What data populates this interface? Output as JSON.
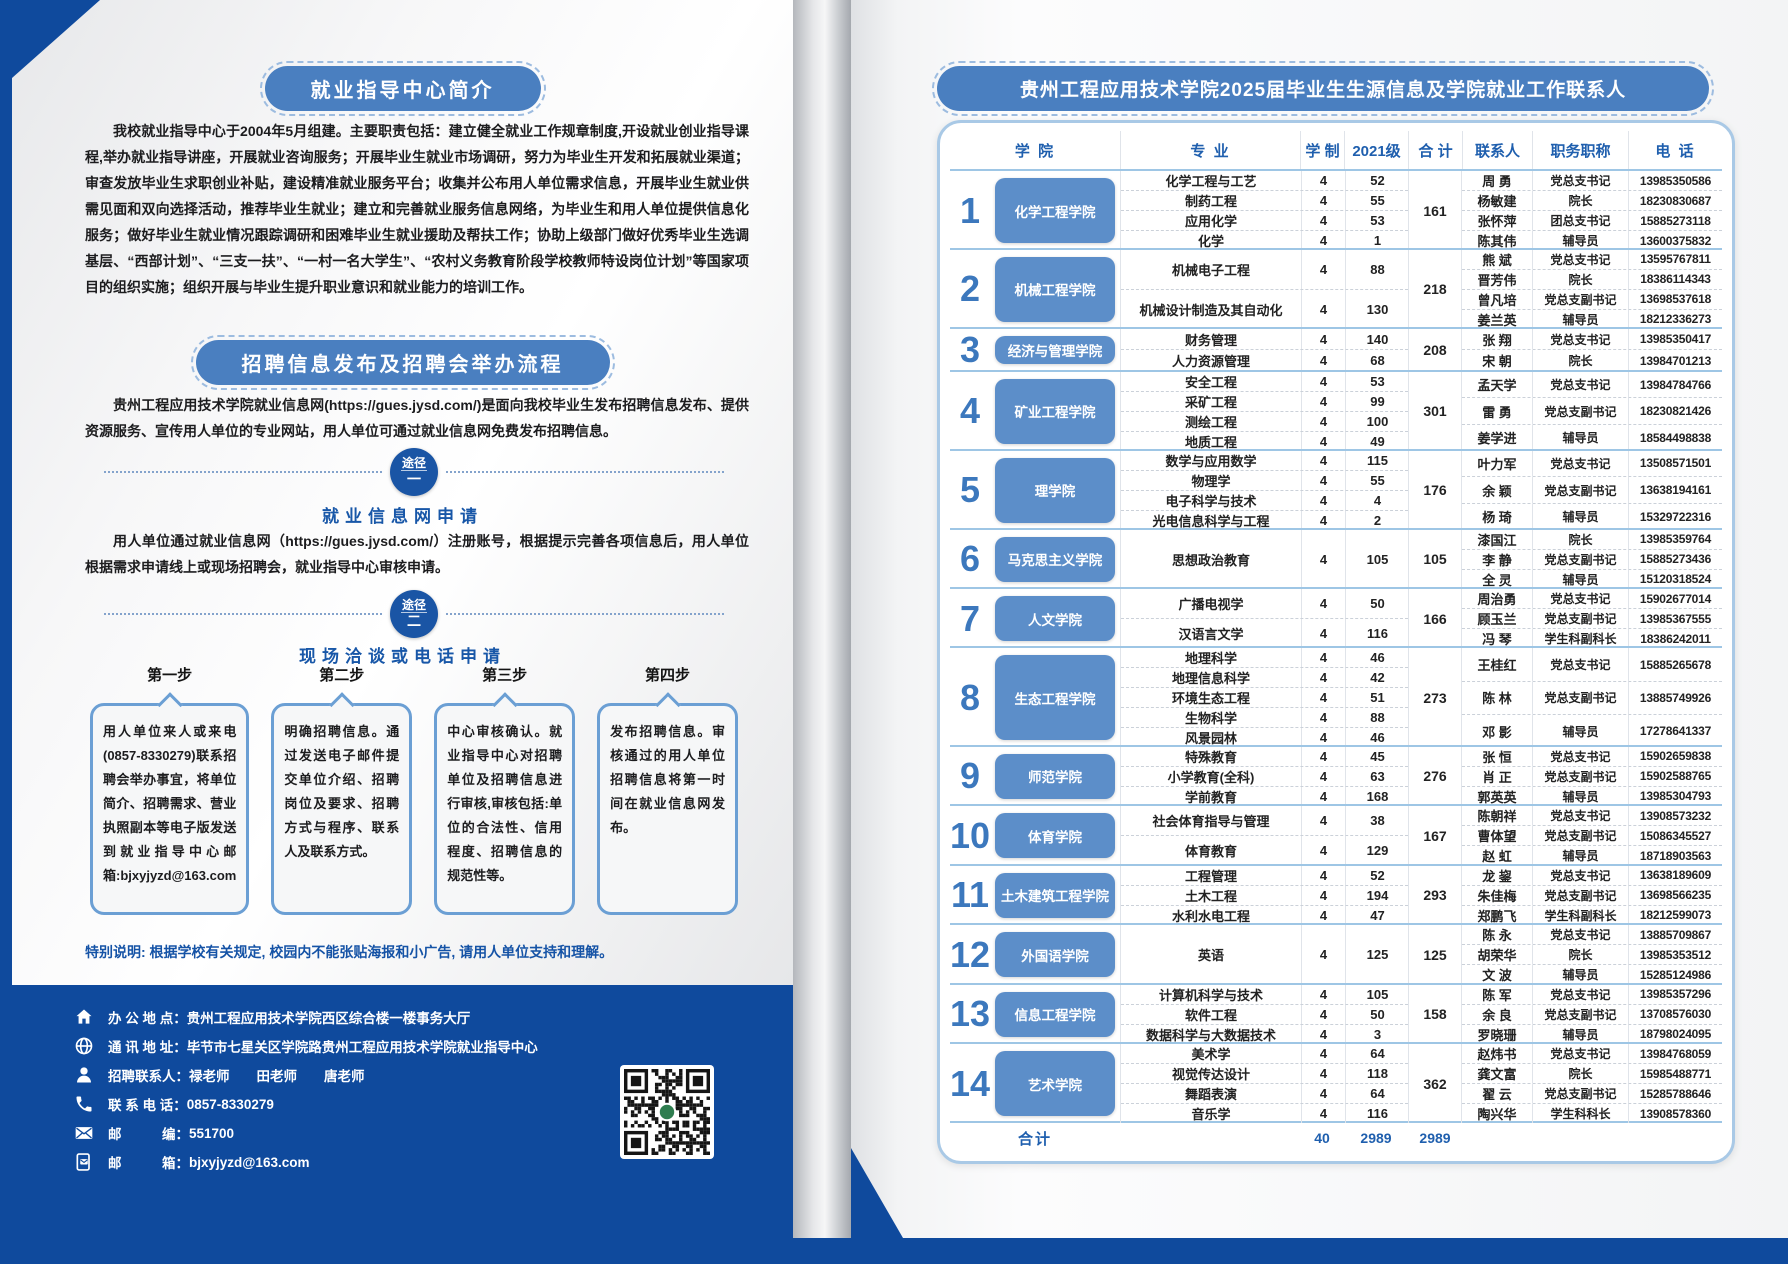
{
  "theme": {
    "brand_blue": "#0f4a9d",
    "pill_blue": "#4a7fc0",
    "college_badge_blue": "#5c8ec9",
    "heading_blue": "#1857a8",
    "table_border_blue": "#9ec6e5"
  },
  "left_page": {
    "section1": {
      "title": "就业指导中心简介",
      "body": "我校就业指导中心于2004年5月组建。主要职责包括：建立健全就业工作规章制度,开设就业创业指导课程,举办就业指导讲座，开展就业咨询服务；开展毕业生就业市场调研，努力为毕业生开发和拓展就业渠道；审查发放毕业生求职创业补贴，建设精准就业服务平台；收集并公布用人单位需求信息，开展毕业生就业供需见面和双向选择活动，推荐毕业生就业；建立和完善就业服务信息网络，为毕业生和用人单位提供信息化服务；做好毕业生就业情况跟踪调研和困难毕业生就业援助及帮扶工作；协助上级部门做好优秀毕业生选调基层、“西部计划”、“三支一扶”、“一村一名大学生”、“农村义务教育阶段学校教师特设岗位计划”等国家项目的组织实施；组织开展与毕业生提升职业意识和就业能力的培训工作。"
    },
    "section2": {
      "title": "招聘信息发布及招聘会举办流程",
      "intro": "贵州工程应用技术学院就业信息网(https://gues.jysd.com/)是面向我校毕业生发布招聘信息发布、提供资源服务、宣传用人单位的专业网站，用人单位可通过就业信息网免费发布招聘信息。",
      "path1": {
        "badge_top": "途径",
        "badge_num": "一",
        "heading": "就业信息网申请",
        "body": "用人单位通过就业信息网（https://gues.jysd.com/）注册账号，根据提示完善各项信息后，用人单位根据需求申请线上或现场招聘会，就业指导中心审核申请。"
      },
      "path2": {
        "badge_top": "途径",
        "badge_num": "二",
        "heading": "现场洽谈或电话申请"
      },
      "steps": [
        {
          "label": "第一步",
          "text": "用人单位来人或来电(0857-8330279)联系招聘会举办事宜，将单位简介、招聘需求、营业执照副本等电子版发送到就业指导中心邮箱:bjxyjyzd@163.com"
        },
        {
          "label": "第二步",
          "text": "明确招聘信息。通过发送电子邮件提交单位介绍、招聘岗位及要求、招聘方式与程序、联系人及联系方式。"
        },
        {
          "label": "第三步",
          "text": "中心审核确认。就业指导中心对招聘单位及招聘信息进行审核,审核包括:单位的合法性、信用程度、招聘信息的规范性等。"
        },
        {
          "label": "第四步",
          "text": "发布招聘信息。审核通过的用人单位招聘信息将第一时间在就业信息网发布。"
        }
      ]
    },
    "special_note": "特别说明: 根据学校有关规定, 校园内不能张贴海报和小广告, 请用人单位支持和理解。",
    "footer": {
      "items": [
        {
          "icon": "home-icon",
          "label": "办 公 地 点：",
          "value": "贵州工程应用技术学院西区综合楼一楼事务大厅"
        },
        {
          "icon": "globe-icon",
          "label": "通 讯 地 址：",
          "value": "毕节市七星关区学院路贵州工程应用技术学院就业指导中心"
        },
        {
          "icon": "person-icon",
          "label": "招聘联系人：",
          "value": "禄老师　　田老师　　唐老师"
        },
        {
          "icon": "phone-icon",
          "label": "联 系 电 话：",
          "value": "0857-8330279"
        },
        {
          "icon": "envelope-icon",
          "label": "邮　　　编：",
          "value": "551700"
        },
        {
          "icon": "mailbox-icon",
          "label": "邮　　　箱：",
          "value": "bjxyjyzd@163.com"
        }
      ]
    }
  },
  "right_page": {
    "title": "贵州工程应用技术学院2025届毕业生生源信息及学院就业工作联系人",
    "table": {
      "headers": [
        "学 院",
        "专 业",
        "学 制",
        "2021级",
        "合 计",
        "联系人",
        "职务职称",
        "电 话"
      ],
      "groups": [
        {
          "no": "1",
          "college": "化学工程学院",
          "total": "161",
          "majors": [
            {
              "name": "化学工程与工艺",
              "years": "4",
              "count": "52"
            },
            {
              "name": "制药工程",
              "years": "4",
              "count": "55"
            },
            {
              "name": "应用化学",
              "years": "4",
              "count": "53"
            },
            {
              "name": "化学",
              "years": "4",
              "count": "1"
            }
          ],
          "contacts": [
            {
              "name": "周 勇",
              "title": "党总支书记",
              "phone": "13985350586"
            },
            {
              "name": "杨敏建",
              "title": "院长",
              "phone": "18230830687"
            },
            {
              "name": "张怀萍",
              "title": "团总支书记",
              "phone": "15885273118"
            },
            {
              "name": "陈其伟",
              "title": "辅导员",
              "phone": "13600375832"
            }
          ]
        },
        {
          "no": "2",
          "college": "机械工程学院",
          "total": "218",
          "majors": [
            {
              "name": "机械电子工程",
              "years": "4",
              "count": "88"
            },
            {
              "name": "机械设计制造及其自动化",
              "years": "4",
              "count": "130"
            }
          ],
          "contacts": [
            {
              "name": "熊 斌",
              "title": "党总支书记",
              "phone": "13595767811"
            },
            {
              "name": "晋芳伟",
              "title": "院长",
              "phone": "18386114343"
            },
            {
              "name": "曾凡培",
              "title": "党总支副书记",
              "phone": "13698537618"
            },
            {
              "name": "姜兰英",
              "title": "辅导员",
              "phone": "18212336273"
            }
          ]
        },
        {
          "no": "3",
          "college": "经济与管理学院",
          "total": "208",
          "majors": [
            {
              "name": "财务管理",
              "years": "4",
              "count": "140"
            },
            {
              "name": "人力资源管理",
              "years": "4",
              "count": "68"
            }
          ],
          "contacts": [
            {
              "name": "张 翔",
              "title": "党总支书记",
              "phone": "13985350417"
            },
            {
              "name": "宋 朝",
              "title": "院长",
              "phone": "13984701213"
            }
          ]
        },
        {
          "no": "4",
          "college": "矿业工程学院",
          "total": "301",
          "majors": [
            {
              "name": "安全工程",
              "years": "4",
              "count": "53"
            },
            {
              "name": "采矿工程",
              "years": "4",
              "count": "99"
            },
            {
              "name": "测绘工程",
              "years": "4",
              "count": "100"
            },
            {
              "name": "地质工程",
              "years": "4",
              "count": "49"
            }
          ],
          "contacts": [
            {
              "name": "孟天学",
              "title": "党总支书记",
              "phone": "13984784766"
            },
            {
              "name": "雷 勇",
              "title": "党总支副书记",
              "phone": "18230821426"
            },
            {
              "name": "姜学进",
              "title": "辅导员",
              "phone": "18584498838"
            }
          ]
        },
        {
          "no": "5",
          "college": "理学院",
          "total": "176",
          "majors": [
            {
              "name": "数学与应用数学",
              "years": "4",
              "count": "115"
            },
            {
              "name": "物理学",
              "years": "4",
              "count": "55"
            },
            {
              "name": "电子科学与技术",
              "years": "4",
              "count": "4"
            },
            {
              "name": "光电信息科学与工程",
              "years": "4",
              "count": "2"
            }
          ],
          "contacts": [
            {
              "name": "叶力军",
              "title": "党总支书记",
              "phone": "13508571501"
            },
            {
              "name": "余 颖",
              "title": "党总支副书记",
              "phone": "13638194161"
            },
            {
              "name": "杨 琦",
              "title": "辅导员",
              "phone": "15329722316"
            }
          ]
        },
        {
          "no": "6",
          "college": "马克思主义学院",
          "total": "105",
          "majors": [
            {
              "name": "思想政治教育",
              "years": "4",
              "count": "105"
            }
          ],
          "contacts": [
            {
              "name": "漆国江",
              "title": "院长",
              "phone": "13985359764"
            },
            {
              "name": "李 静",
              "title": "党总支副书记",
              "phone": "15885273436"
            },
            {
              "name": "全 灵",
              "title": "辅导员",
              "phone": "15120318524"
            }
          ]
        },
        {
          "no": "7",
          "college": "人文学院",
          "total": "166",
          "majors": [
            {
              "name": "广播电视学",
              "years": "4",
              "count": "50"
            },
            {
              "name": "汉语言文学",
              "years": "4",
              "count": "116"
            }
          ],
          "contacts": [
            {
              "name": "周治勇",
              "title": "党总支书记",
              "phone": "15902677014"
            },
            {
              "name": "顾玉兰",
              "title": "党总支副书记",
              "phone": "13985367555"
            },
            {
              "name": "冯 琴",
              "title": "学生科副科长",
              "phone": "18386242011"
            }
          ]
        },
        {
          "no": "8",
          "college": "生态工程学院",
          "total": "273",
          "majors": [
            {
              "name": "地理科学",
              "years": "4",
              "count": "46"
            },
            {
              "name": "地理信息科学",
              "years": "4",
              "count": "42"
            },
            {
              "name": "环境生态工程",
              "years": "4",
              "count": "51"
            },
            {
              "name": "生物科学",
              "years": "4",
              "count": "88"
            },
            {
              "name": "风景园林",
              "years": "4",
              "count": "46"
            }
          ],
          "contacts": [
            {
              "name": "王桂红",
              "title": "党总支书记",
              "phone": "15885265678"
            },
            {
              "name": "陈 林",
              "title": "党总支副书记",
              "phone": "13885749926"
            },
            {
              "name": "邓 影",
              "title": "辅导员",
              "phone": "17278641337"
            }
          ]
        },
        {
          "no": "9",
          "college": "师范学院",
          "total": "276",
          "majors": [
            {
              "name": "特殊教育",
              "years": "4",
              "count": "45"
            },
            {
              "name": "小学教育(全科)",
              "years": "4",
              "count": "63"
            },
            {
              "name": "学前教育",
              "years": "4",
              "count": "168"
            }
          ],
          "contacts": [
            {
              "name": "张 恒",
              "title": "党总支书记",
              "phone": "15902659838"
            },
            {
              "name": "肖 正",
              "title": "党总支副书记",
              "phone": "15902588765"
            },
            {
              "name": "郭英英",
              "title": "辅导员",
              "phone": "13985304793"
            }
          ]
        },
        {
          "no": "10",
          "college": "体育学院",
          "total": "167",
          "majors": [
            {
              "name": "社会体育指导与管理",
              "years": "4",
              "count": "38"
            },
            {
              "name": "体育教育",
              "years": "4",
              "count": "129"
            }
          ],
          "contacts": [
            {
              "name": "陈朝祥",
              "title": "党总支书记",
              "phone": "13908573232"
            },
            {
              "name": "曹体望",
              "title": "党总支副书记",
              "phone": "15086345527"
            },
            {
              "name": "赵 虹",
              "title": "辅导员",
              "phone": "18718903563"
            }
          ]
        },
        {
          "no": "11",
          "college": "土木建筑工程学院",
          "total": "293",
          "majors": [
            {
              "name": "工程管理",
              "years": "4",
              "count": "52"
            },
            {
              "name": "土木工程",
              "years": "4",
              "count": "194"
            },
            {
              "name": "水利水电工程",
              "years": "4",
              "count": "47"
            }
          ],
          "contacts": [
            {
              "name": "龙 鋆",
              "title": "党总支书记",
              "phone": "13638189609"
            },
            {
              "name": "朱佳梅",
              "title": "党总支副书记",
              "phone": "13698566235"
            },
            {
              "name": "郑鹏飞",
              "title": "学生科副科长",
              "phone": "18212599073"
            }
          ]
        },
        {
          "no": "12",
          "college": "外国语学院",
          "total": "125",
          "majors": [
            {
              "name": "英语",
              "years": "4",
              "count": "125"
            }
          ],
          "contacts": [
            {
              "name": "陈 永",
              "title": "党总支书记",
              "phone": "13885709867"
            },
            {
              "name": "胡荣华",
              "title": "院长",
              "phone": "13985353512"
            },
            {
              "name": "文 波",
              "title": "辅导员",
              "phone": "15285124986"
            }
          ]
        },
        {
          "no": "13",
          "college": "信息工程学院",
          "total": "158",
          "majors": [
            {
              "name": "计算机科学与技术",
              "years": "4",
              "count": "105"
            },
            {
              "name": "软件工程",
              "years": "4",
              "count": "50"
            },
            {
              "name": "数据科学与大数据技术",
              "years": "4",
              "count": "3"
            }
          ],
          "contacts": [
            {
              "name": "陈 军",
              "title": "党总支书记",
              "phone": "13985357296"
            },
            {
              "name": "余 良",
              "title": "党总支副书记",
              "phone": "13708576030"
            },
            {
              "name": "罗晓珊",
              "title": "辅导员",
              "phone": "18798024095"
            }
          ]
        },
        {
          "no": "14",
          "college": "艺术学院",
          "total": "362",
          "majors": [
            {
              "name": "美术学",
              "years": "4",
              "count": "64"
            },
            {
              "name": "视觉传达设计",
              "years": "4",
              "count": "118"
            },
            {
              "name": "舞蹈表演",
              "years": "4",
              "count": "64"
            },
            {
              "name": "音乐学",
              "years": "4",
              "count": "116"
            }
          ],
          "contacts": [
            {
              "name": "赵炜书",
              "title": "党总支书记",
              "phone": "13984768059"
            },
            {
              "name": "龚文富",
              "title": "院长",
              "phone": "15985488771"
            },
            {
              "name": "翟 云",
              "title": "党总支副书记",
              "phone": "15285788646"
            },
            {
              "name": "陶兴华",
              "title": "学生科科长",
              "phone": "13908578360"
            }
          ]
        }
      ],
      "grand_total": {
        "label": "合计",
        "years": "40",
        "grade_2021": "2989",
        "total": "2989"
      }
    }
  }
}
